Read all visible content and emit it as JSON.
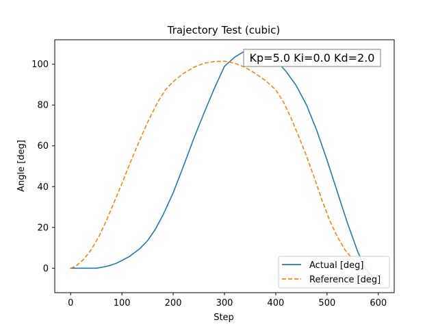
{
  "chart_data": {
    "type": "line",
    "title": "Trajectory Test (cubic)",
    "xlabel": "Step",
    "ylabel": "Angle [deg]",
    "xlim": [
      -31,
      631
    ],
    "ylim": [
      -12,
      112
    ],
    "xticks": [
      0,
      100,
      200,
      300,
      400,
      500,
      600
    ],
    "yticks": [
      0,
      20,
      40,
      60,
      80,
      100
    ],
    "grid": false,
    "legend_placement": "lower-right",
    "annotation": "Kp=5.0 Ki=0.0 Kd=2.0",
    "series": [
      {
        "name": "Actual [deg]",
        "color": "#1f77b4",
        "style": "solid",
        "x": [
          0,
          25,
          50,
          60,
          75,
          90,
          100,
          115,
          135,
          150,
          165,
          180,
          200,
          220,
          240,
          260,
          280,
          300,
          320,
          340,
          355,
          370,
          385,
          400,
          420,
          440,
          460,
          480,
          500,
          520,
          540,
          560,
          575,
          585,
          595
        ],
        "y": [
          0,
          0,
          0,
          0.4,
          1.2,
          2.5,
          3.8,
          5.8,
          9.6,
          13.5,
          19.0,
          26.0,
          37.0,
          50.0,
          63.5,
          76.0,
          88.0,
          99.0,
          103.5,
          106.5,
          107.0,
          106.5,
          104.5,
          102.0,
          96.5,
          89.5,
          80.0,
          67.5,
          53.0,
          37.5,
          22.0,
          8.0,
          0,
          -3.5,
          -5.5
        ]
      },
      {
        "name": "Reference [deg]",
        "color": "#ff7f0e",
        "style": "dashed",
        "x": [
          0,
          10,
          25,
          40,
          55,
          70,
          85,
          100,
          115,
          130,
          150,
          170,
          185,
          200,
          220,
          240,
          260,
          280,
          300,
          320,
          340,
          360,
          380,
          400,
          415,
          430,
          445,
          460,
          475,
          490,
          505,
          520,
          535,
          550,
          565,
          575
        ],
        "y": [
          0,
          1.0,
          4.2,
          9.0,
          15.5,
          23.5,
          32.5,
          41.5,
          51.0,
          60.0,
          71.5,
          81.5,
          87.5,
          91.5,
          95.5,
          98.5,
          100.5,
          101.3,
          101.5,
          100.5,
          98.5,
          95.5,
          92.0,
          87.5,
          81.5,
          73.5,
          64.5,
          55.0,
          44.5,
          33.5,
          23.5,
          15.5,
          9.0,
          4.5,
          1.2,
          0
        ]
      }
    ]
  }
}
